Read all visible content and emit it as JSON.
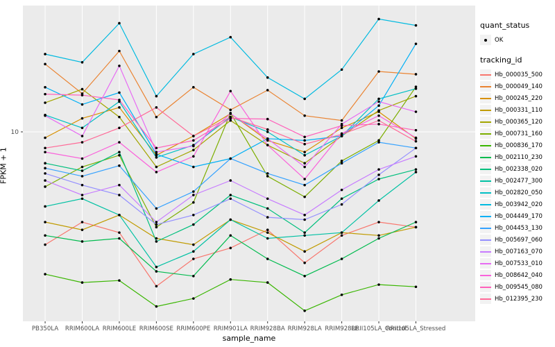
{
  "axes": {
    "y_title": "FPKM + 1",
    "x_title": "sample_name",
    "y_tick_label": "10"
  },
  "legend": {
    "quant_status": {
      "title": "quant_status",
      "items": [
        {
          "label": "OK"
        }
      ]
    },
    "tracking_id": {
      "title": "tracking_id",
      "items": [
        {
          "label": "Hb_000035_500",
          "color": "#F8766D"
        },
        {
          "label": "Hb_000049_140",
          "color": "#EA8331"
        },
        {
          "label": "Hb_000245_220",
          "color": "#D89000"
        },
        {
          "label": "Hb_000331_110",
          "color": "#C09B00"
        },
        {
          "label": "Hb_000365_120",
          "color": "#A3A500"
        },
        {
          "label": "Hb_000731_160",
          "color": "#7CAE00"
        },
        {
          "label": "Hb_000836_170",
          "color": "#39B600"
        },
        {
          "label": "Hb_002110_230",
          "color": "#00BB4E"
        },
        {
          "label": "Hb_002338_020",
          "color": "#00BF7D"
        },
        {
          "label": "Hb_002477_300",
          "color": "#00C1A3"
        },
        {
          "label": "Hb_002820_050",
          "color": "#00BFC4"
        },
        {
          "label": "Hb_003942_020",
          "color": "#00BAE0"
        },
        {
          "label": "Hb_004449_170",
          "color": "#00B0F6"
        },
        {
          "label": "Hb_004453_130",
          "color": "#35A2FF"
        },
        {
          "label": "Hb_005697_060",
          "color": "#9590FF"
        },
        {
          "label": "Hb_007163_070",
          "color": "#C77CFF"
        },
        {
          "label": "Hb_007533_010",
          "color": "#E76BF3"
        },
        {
          "label": "Hb_008642_040",
          "color": "#FA62DB"
        },
        {
          "label": "Hb_009545_080",
          "color": "#FF62BC"
        },
        {
          "label": "Hb_012395_230",
          "color": "#FF6A98"
        }
      ]
    }
  },
  "chart_data": {
    "type": "line",
    "title": "",
    "xlabel": "sample_name",
    "ylabel": "FPKM + 1",
    "y_scale": "log10",
    "y_breaks": [
      10
    ],
    "ylim_approx": [
      0.98,
      47
    ],
    "grid": "major-only",
    "panel_bg": "#EBEBEB",
    "grid_color": "#FFFFFF",
    "point_color": "#000000",
    "legend_position": "right",
    "quant_status_all": "OK",
    "x_categories": [
      "PB350LA",
      "RRIM600LA",
      "RRIM600LE",
      "RRIM600SE",
      "RRIM600PE",
      "RRIM901LA",
      "RRIM928BA",
      "RRIM928LA",
      "RRIM928LE",
      "RRII105LA_Control",
      "RRII105LA_Stressed"
    ],
    "series": [
      {
        "name": "Hb_000035_500",
        "color": "#F8766D",
        "values": [
          2.5,
          3.3,
          2.9,
          1.5,
          2.1,
          2.4,
          3.0,
          2.0,
          2.8,
          3.3,
          3.1
        ]
      },
      {
        "name": "Hb_000049_140",
        "color": "#EA8331",
        "values": [
          23,
          16,
          27,
          12,
          17.3,
          13.1,
          16.7,
          12.2,
          11.5,
          21,
          20.3
        ]
      },
      {
        "name": "Hb_000245_220",
        "color": "#D89000",
        "values": [
          9.3,
          11.8,
          13.5,
          7.5,
          9.5,
          12.5,
          9.0,
          7.8,
          10.5,
          12.8,
          9.2
        ]
      },
      {
        "name": "Hb_000331_110",
        "color": "#C09B00",
        "values": [
          3.3,
          3.0,
          3.6,
          2.7,
          2.5,
          3.4,
          2.9,
          2.3,
          2.9,
          2.8,
          3.1
        ]
      },
      {
        "name": "Hb_000365_120",
        "color": "#A3A500",
        "values": [
          14.3,
          16.9,
          12,
          6.5,
          8,
          11.5,
          8.5,
          6.8,
          9.5,
          13,
          15.5
        ]
      },
      {
        "name": "Hb_000731_160",
        "color": "#7CAE00",
        "values": [
          5.1,
          6.5,
          7.5,
          3.1,
          4.2,
          12.6,
          5.8,
          4.5,
          7.0,
          9.0,
          17.4
        ]
      },
      {
        "name": "Hb_000836_170",
        "color": "#39B600",
        "values": [
          1.74,
          1.57,
          1.61,
          1.17,
          1.29,
          1.63,
          1.57,
          1.11,
          1.35,
          1.53,
          1.49
        ]
      },
      {
        "name": "Hb_002110_230",
        "color": "#00BB4E",
        "values": [
          2.8,
          2.6,
          2.7,
          1.8,
          1.7,
          2.8,
          2.1,
          1.7,
          2.1,
          2.7,
          3.3
        ]
      },
      {
        "name": "Hb_002338_020",
        "color": "#00BF7D",
        "values": [
          6.8,
          6.2,
          7.8,
          2.6,
          3.2,
          4.6,
          3.9,
          2.9,
          4.4,
          5.6,
          6.3
        ]
      },
      {
        "name": "Hb_002477_300",
        "color": "#00C1A3",
        "values": [
          4.0,
          4.4,
          3.6,
          1.9,
          2.3,
          3.4,
          2.7,
          2.8,
          2.9,
          4.3,
          6.1
        ]
      },
      {
        "name": "Hb_002820_050",
        "color": "#00BFC4",
        "values": [
          12.3,
          10.5,
          14.5,
          7.3,
          8.5,
          12,
          10,
          7.5,
          9.5,
          15,
          17
        ]
      },
      {
        "name": "Hb_003942_020",
        "color": "#00BAE0",
        "values": [
          26,
          23.5,
          38,
          15.5,
          26,
          32,
          19.5,
          15,
          21.5,
          40,
          37
        ]
      },
      {
        "name": "Hb_004449_170",
        "color": "#00B0F6",
        "values": [
          17.3,
          14,
          16.2,
          7.6,
          6.5,
          7.2,
          9.2,
          9.0,
          9.5,
          13.8,
          29.5
        ]
      },
      {
        "name": "Hb_004453_130",
        "color": "#35A2FF",
        "values": [
          6.4,
          5.8,
          6.6,
          3.9,
          4.8,
          7.2,
          6.0,
          5.2,
          6.8,
          8.8,
          8.2
        ]
      },
      {
        "name": "Hb_005697_060",
        "color": "#9590FF",
        "values": [
          6.0,
          5.2,
          4.6,
          3.2,
          3.6,
          4.4,
          3.5,
          3.4,
          4.1,
          5.9,
          8.2
        ]
      },
      {
        "name": "Hb_007163_070",
        "color": "#C77CFF",
        "values": [
          5.5,
          4.6,
          5.2,
          3.3,
          4.6,
          5.5,
          4.4,
          3.6,
          4.9,
          6.3,
          7.4
        ]
      },
      {
        "name": "Hb_007533_010",
        "color": "#E76BF3",
        "values": [
          12.2,
          9.5,
          22.5,
          7.8,
          8.4,
          12.5,
          9.2,
          6.5,
          11,
          14.5,
          12.8
        ]
      },
      {
        "name": "Hb_008642_040",
        "color": "#FA62DB",
        "values": [
          7.8,
          7.2,
          8.8,
          6.1,
          7.4,
          16.5,
          8.5,
          5.6,
          9.8,
          12.2,
          9.3
        ]
      },
      {
        "name": "Hb_009545_080",
        "color": "#FF62BC",
        "values": [
          15.9,
          15.7,
          14.8,
          8.2,
          9.0,
          11.8,
          11.7,
          9.4,
          10.8,
          11.0,
          10.2
        ]
      },
      {
        "name": "Hb_012395_230",
        "color": "#FF6A98",
        "values": [
          8.2,
          8.8,
          10.5,
          13.5,
          9.5,
          12.0,
          10.3,
          8.6,
          9.7,
          11.5,
          8.9
        ]
      }
    ]
  }
}
